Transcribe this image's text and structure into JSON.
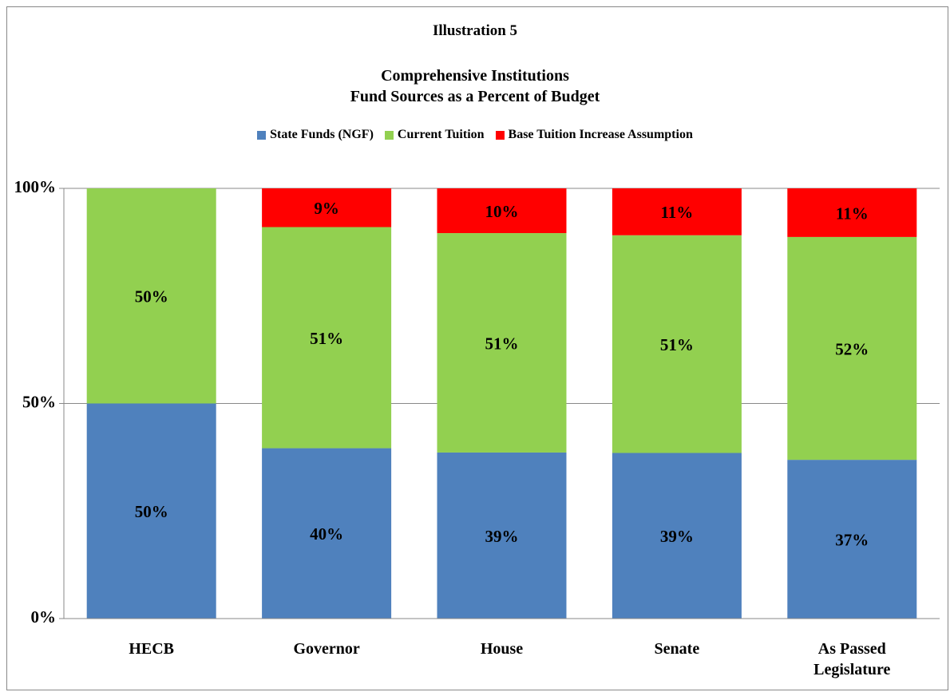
{
  "chart_data": {
    "type": "stacked_bar",
    "title": "Illustration 5",
    "subtitle": "Comprehensive Institutions\nFund Sources as a Percent of Budget",
    "categories": [
      "HECB",
      "Governor",
      "House",
      "Senate",
      "As Passed\nLegislature"
    ],
    "series": [
      {
        "name": "State Funds (NGF)",
        "color": "#4f81bd",
        "values": [
          50,
          39.6,
          38.6,
          38.5,
          36.9
        ],
        "value_labels": [
          "50%",
          "40%",
          "39%",
          "39%",
          "37%"
        ]
      },
      {
        "name": "Current Tuition",
        "color": "#92d050",
        "values": [
          50,
          51.4,
          51.0,
          50.6,
          51.8
        ],
        "value_labels": [
          "50%",
          "51%",
          "51%",
          "51%",
          "52%"
        ]
      },
      {
        "name": "Base Tuition Increase Assumption",
        "color": "#ff0000",
        "values": [
          null,
          9.0,
          10.4,
          10.9,
          11.3
        ],
        "value_labels": [
          null,
          "9%",
          "10%",
          "11%",
          "11%"
        ]
      }
    ],
    "ylim": [
      0,
      100
    ],
    "yticks": [
      {
        "value": 0,
        "label": "0%"
      },
      {
        "value": 50,
        "label": "50%"
      },
      {
        "value": 100,
        "label": "100%"
      }
    ],
    "grid": true,
    "legend": "top"
  }
}
